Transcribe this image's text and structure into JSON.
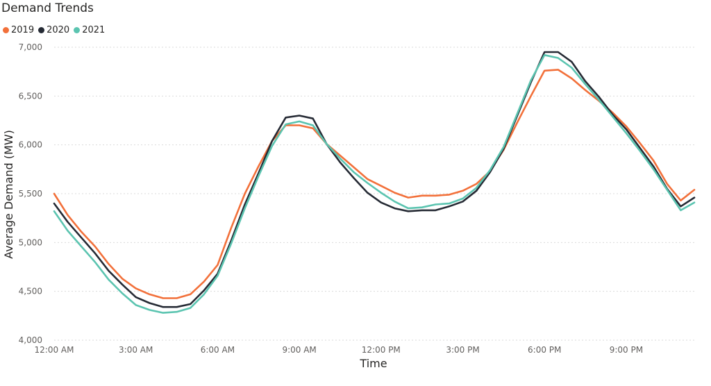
{
  "chart_data": {
    "type": "line",
    "title": "Demand Trends",
    "xlabel": "Time",
    "ylabel": "Average Demand (MW)",
    "ylim": [
      4000,
      7000
    ],
    "yticks": [
      4000,
      4500,
      5000,
      5500,
      6000,
      6500,
      7000
    ],
    "ytick_labels": [
      "4,000",
      "4,500",
      "5,000",
      "5,500",
      "6,000",
      "6,500",
      "7,000"
    ],
    "xlim": [
      0,
      23.5
    ],
    "xticks": [
      0,
      3,
      6,
      9,
      12,
      15,
      18,
      21
    ],
    "xtick_labels": [
      "12:00 AM",
      "3:00 AM",
      "6:00 AM",
      "9:00 AM",
      "12:00 PM",
      "3:00 PM",
      "6:00 PM",
      "9:00 PM"
    ],
    "x": [
      0,
      0.5,
      1,
      1.5,
      2,
      2.5,
      3,
      3.5,
      4,
      4.5,
      5,
      5.5,
      6,
      6.5,
      7,
      7.5,
      8,
      8.5,
      9,
      9.5,
      10,
      10.5,
      11,
      11.5,
      12,
      12.5,
      13,
      13.5,
      14,
      14.5,
      15,
      15.5,
      16,
      16.5,
      17,
      17.5,
      18,
      18.5,
      19,
      19.5,
      20,
      20.5,
      21,
      21.5,
      22,
      22.5,
      23,
      23.5
    ],
    "grid": true,
    "legend_position": "top-left",
    "series": [
      {
        "name": "2019",
        "color": "#F2703A",
        "values": [
          5500,
          5280,
          5110,
          4960,
          4780,
          4630,
          4530,
          4470,
          4430,
          4430,
          4470,
          4600,
          4770,
          5150,
          5500,
          5780,
          6040,
          6200,
          6200,
          6170,
          6010,
          5890,
          5770,
          5650,
          5580,
          5510,
          5460,
          5480,
          5480,
          5490,
          5530,
          5600,
          5730,
          5950,
          6230,
          6500,
          6760,
          6770,
          6680,
          6560,
          6450,
          6330,
          6190,
          6020,
          5840,
          5600,
          5430,
          5540
        ]
      },
      {
        "name": "2020",
        "color": "#252A34",
        "values": [
          5400,
          5210,
          5050,
          4890,
          4710,
          4570,
          4440,
          4380,
          4340,
          4340,
          4370,
          4510,
          4680,
          5020,
          5390,
          5710,
          6040,
          6280,
          6300,
          6270,
          6010,
          5820,
          5660,
          5510,
          5410,
          5350,
          5320,
          5330,
          5330,
          5370,
          5420,
          5530,
          5720,
          5960,
          6300,
          6640,
          6950,
          6950,
          6850,
          6650,
          6490,
          6310,
          6160,
          5970,
          5780,
          5550,
          5370,
          5460
        ]
      },
      {
        "name": "2021",
        "color": "#5BC4B0",
        "values": [
          5320,
          5120,
          4960,
          4800,
          4620,
          4480,
          4360,
          4310,
          4280,
          4290,
          4330,
          4470,
          4660,
          4990,
          5350,
          5680,
          5990,
          6210,
          6240,
          6200,
          6010,
          5860,
          5720,
          5610,
          5510,
          5420,
          5350,
          5360,
          5390,
          5400,
          5450,
          5560,
          5740,
          5980,
          6320,
          6660,
          6920,
          6890,
          6790,
          6620,
          6460,
          6290,
          6120,
          5940,
          5750,
          5540,
          5330,
          5410
        ]
      }
    ]
  }
}
